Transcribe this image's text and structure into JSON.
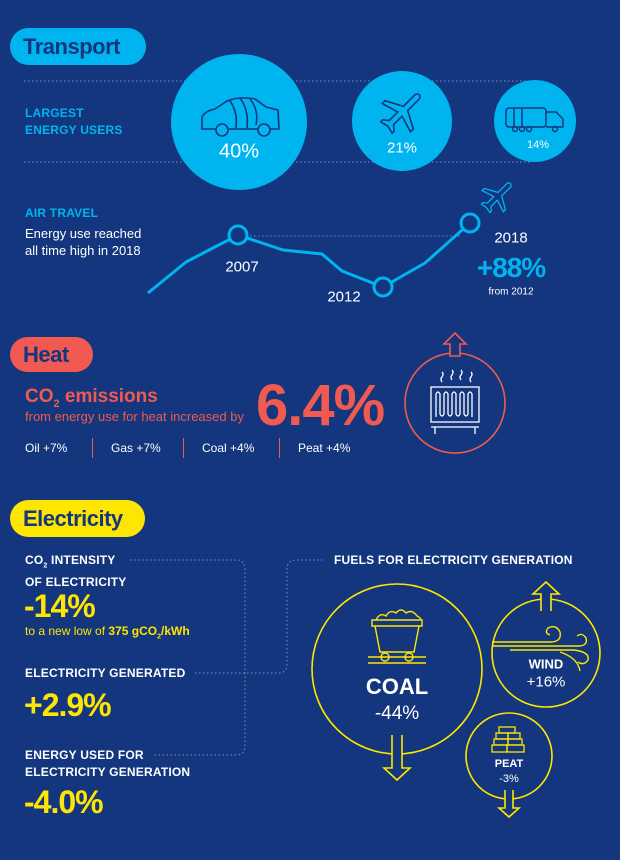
{
  "colors": {
    "background": "#13367e",
    "transport": "#00b5ef",
    "heat": "#f05a50",
    "electricity": "#ffe600"
  },
  "transport": {
    "title": "Transport",
    "largest_label_1": "LARGEST",
    "largest_label_2": "ENERGY USERS",
    "users": [
      {
        "icon": "car-icon",
        "value": "40%"
      },
      {
        "icon": "plane-icon",
        "value": "21%"
      },
      {
        "icon": "truck-icon",
        "value": "14%"
      }
    ],
    "air_travel": {
      "title": "AIR TRAVEL",
      "line1": "Energy use reached",
      "line2": "all time high in 2018",
      "years": [
        "2007",
        "2012",
        "2018"
      ],
      "change": "+88%",
      "change_note": "from 2012"
    }
  },
  "heat": {
    "title": "Heat",
    "headline_co": "CO",
    "headline_sub": "2",
    "headline_rest": " emissions",
    "subtitle": "from energy use for heat increased by",
    "value": "6.4%",
    "fuels": [
      "Oil +7%",
      "Gas +7%",
      "Coal +4%",
      "Peat +4%"
    ]
  },
  "electricity": {
    "title": "Electricity",
    "intensity_label_co": "CO",
    "intensity_label_sub": "2",
    "intensity_label_rest": " INTENSITY",
    "intensity_label_2": "OF ELECTRICITY",
    "intensity_value": "-14%",
    "intensity_note": "to a new low of ",
    "intensity_note_bold": "375 gCO",
    "intensity_note_sub": "2",
    "intensity_note_unit": "/kWh",
    "generated_label": "ELECTRICITY GENERATED",
    "generated_value": "+2.9%",
    "energy_label_1": "ENERGY USED FOR",
    "energy_label_2": "ELECTRICITY GENERATION",
    "energy_value": "-4.0%",
    "fuels_title": "FUELS FOR ELECTRICITY GENERATION",
    "fuels": [
      {
        "name": "COAL",
        "value": "-44%",
        "direction": "down"
      },
      {
        "name": "WIND",
        "value": "+16%",
        "direction": "up"
      },
      {
        "name": "PEAT",
        "value": "-3%",
        "direction": "down"
      }
    ]
  }
}
